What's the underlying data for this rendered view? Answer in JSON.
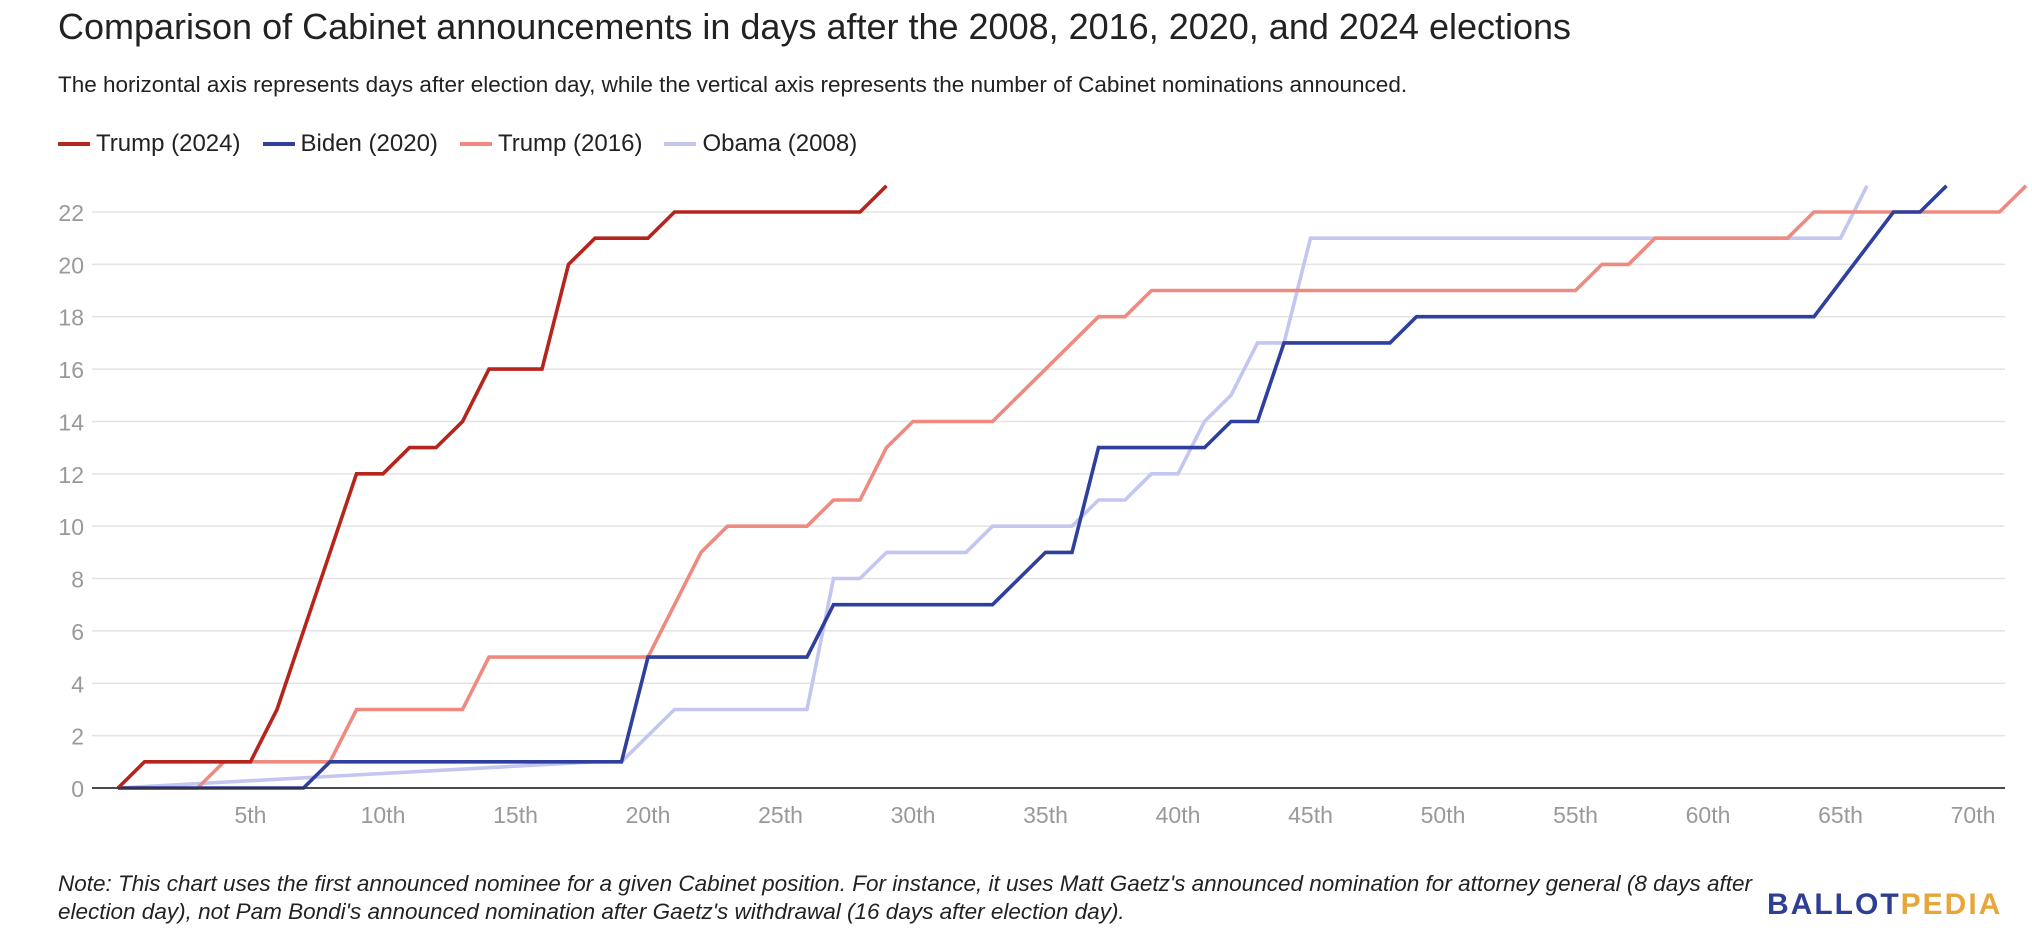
{
  "header": {
    "title": "Comparison of Cabinet announcements in days after the 2008, 2016, 2020, and 2024 elections",
    "subtitle": "The horizontal axis represents days after election day, while the vertical axis represents the number of Cabinet nominations announced."
  },
  "footer": {
    "note": "Note: This chart uses the first announced nominee for a given Cabinet position. For instance, it uses Matt Gaetz's announced nomination for attorney general (8 days after election day), not Pam Bondi's announced nomination after Gaetz's withdrawal (16 days after election day).",
    "logo_part1": "BALLOT",
    "logo_part2": "PEDIA",
    "logo_colors": [
      "#2e3f93",
      "#e6a63a"
    ]
  },
  "chart_data": {
    "type": "line",
    "title": "Comparison of Cabinet announcements in days after the 2008, 2016, 2020, and 2024 elections",
    "subtitle": "The horizontal axis represents days after election day, while the vertical axis represents the number of Cabinet nominations announced.",
    "xlabel": "",
    "ylabel": "",
    "xlim": [
      0,
      73
    ],
    "ylim": [
      0,
      23
    ],
    "x_ticks": [
      5,
      10,
      15,
      20,
      25,
      30,
      35,
      40,
      45,
      50,
      55,
      60,
      65,
      70
    ],
    "x_tick_labels": [
      "5th",
      "10th",
      "15th",
      "20th",
      "25th",
      "30th",
      "35th",
      "40th",
      "45th",
      "50th",
      "55th",
      "60th",
      "65th",
      "70th"
    ],
    "y_ticks": [
      0,
      2,
      4,
      6,
      8,
      10,
      12,
      14,
      16,
      18,
      20,
      22
    ],
    "y_tick_labels": [
      "0",
      "2",
      "4",
      "6",
      "8",
      "10",
      "12",
      "14",
      "16",
      "18",
      "20",
      "22"
    ],
    "grid": true,
    "legend_position": "top-left",
    "series": [
      {
        "name": "Trump (2024)",
        "color": "#b5251d",
        "x": [
          0,
          1,
          2,
          3,
          4,
          5,
          6,
          7,
          8,
          9,
          10,
          11,
          12,
          13,
          14,
          15,
          16,
          17,
          18,
          19,
          20,
          21,
          22,
          23,
          24,
          25,
          26,
          27,
          28,
          29
        ],
        "y": [
          0,
          1,
          1,
          1,
          1,
          1,
          3,
          6,
          9,
          12,
          12,
          13,
          13,
          14,
          16,
          16,
          16,
          20,
          21,
          21,
          21,
          22,
          22,
          22,
          22,
          22,
          22,
          22,
          22,
          23
        ]
      },
      {
        "name": "Biden (2020)",
        "color": "#2e3f9e",
        "x": [
          0,
          5,
          6,
          7,
          8,
          18,
          19,
          20,
          25,
          26,
          27,
          32,
          33,
          34,
          35,
          36,
          37,
          40,
          41,
          42,
          43,
          44,
          47,
          48,
          49,
          63,
          64,
          67,
          68,
          69
        ],
        "y": [
          0,
          0,
          0,
          0,
          1,
          1,
          1,
          5,
          5,
          5,
          7,
          7,
          7,
          8,
          9,
          9,
          13,
          13,
          13,
          14,
          14,
          17,
          17,
          17,
          18,
          18,
          18,
          22,
          22,
          23
        ]
      },
      {
        "name": "Trump (2016)",
        "color": "#ee8a80",
        "x": [
          0,
          3,
          4,
          8,
          9,
          13,
          14,
          19,
          20,
          21,
          22,
          23,
          25,
          26,
          27,
          28,
          29,
          30,
          32,
          33,
          34,
          35,
          36,
          37,
          38,
          39,
          54,
          55,
          56,
          57,
          58,
          63,
          64,
          65,
          71,
          72
        ],
        "y": [
          0,
          0,
          1,
          1,
          3,
          3,
          5,
          5,
          5,
          7,
          9,
          10,
          10,
          10,
          11,
          11,
          13,
          14,
          14,
          14,
          15,
          16,
          17,
          18,
          18,
          19,
          19,
          19,
          20,
          20,
          21,
          21,
          22,
          22,
          22,
          23
        ]
      },
      {
        "name": "Obama (2008)",
        "color": "#c3c6f1",
        "x": [
          0,
          18,
          19,
          20,
          21,
          25,
          26,
          27,
          28,
          29,
          30,
          31,
          32,
          33,
          35,
          36,
          37,
          38,
          39,
          40,
          41,
          42,
          43,
          44,
          45,
          63,
          64,
          65,
          66
        ],
        "y": [
          0,
          1,
          1,
          2,
          3,
          3,
          3,
          8,
          8,
          9,
          9,
          9,
          9,
          10,
          10,
          10,
          11,
          11,
          12,
          12,
          14,
          15,
          17,
          17,
          21,
          21,
          21,
          21,
          23
        ]
      }
    ]
  }
}
